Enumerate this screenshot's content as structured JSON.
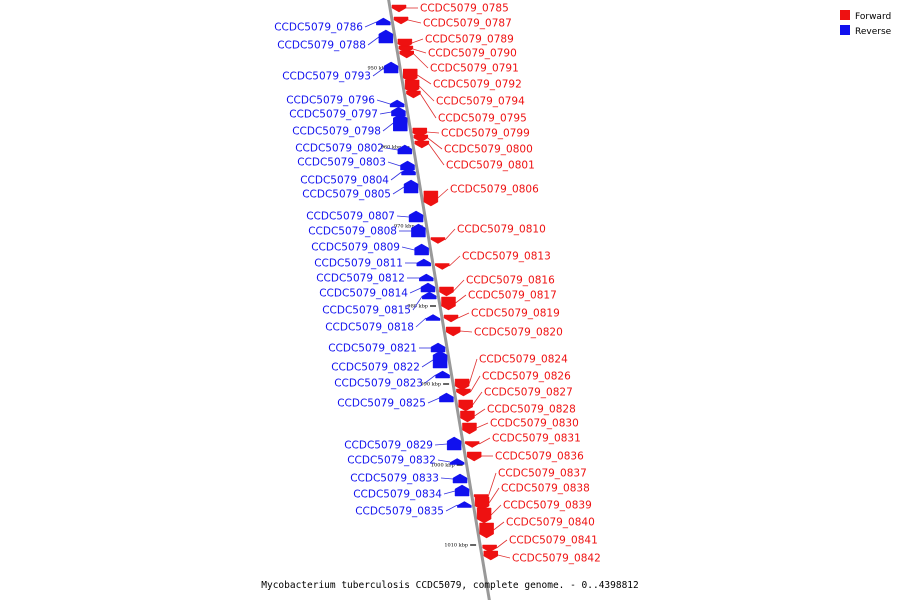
{
  "caption": "Mycobacterium tuberculosis CCDC5079, complete genome. - 0..4398812",
  "colors": {
    "forward": "#ee1111",
    "reverse": "#1111ee",
    "axis": "#999999",
    "leader_forward": "#e03030",
    "leader_reverse": "#3030e0"
  },
  "legend": [
    {
      "key": "forward",
      "label": "Forward"
    },
    {
      "key": "reverse",
      "label": "Reverse"
    }
  ],
  "scale_ticks": [
    "950 kbp",
    "960 kbp",
    "970 kbp",
    "980 kbp",
    "990 kbp",
    "1000 kbp",
    "1010 kbp"
  ],
  "genes": [
    {
      "name": "CCDC5079_0785",
      "strand": "forward"
    },
    {
      "name": "CCDC5079_0786",
      "strand": "reverse"
    },
    {
      "name": "CCDC5079_0787",
      "strand": "forward"
    },
    {
      "name": "CCDC5079_0788",
      "strand": "reverse"
    },
    {
      "name": "CCDC5079_0789",
      "strand": "forward"
    },
    {
      "name": "CCDC5079_0790",
      "strand": "forward"
    },
    {
      "name": "CCDC5079_0791",
      "strand": "forward"
    },
    {
      "name": "CCDC5079_0793",
      "strand": "reverse"
    },
    {
      "name": "CCDC5079_0792",
      "strand": "forward"
    },
    {
      "name": "CCDC5079_0794",
      "strand": "forward"
    },
    {
      "name": "CCDC5079_0796",
      "strand": "reverse"
    },
    {
      "name": "CCDC5079_0797",
      "strand": "reverse"
    },
    {
      "name": "CCDC5079_0795",
      "strand": "forward"
    },
    {
      "name": "CCDC5079_0798",
      "strand": "reverse"
    },
    {
      "name": "CCDC5079_0799",
      "strand": "forward"
    },
    {
      "name": "CCDC5079_0802",
      "strand": "reverse"
    },
    {
      "name": "CCDC5079_0800",
      "strand": "forward"
    },
    {
      "name": "CCDC5079_0803",
      "strand": "reverse"
    },
    {
      "name": "CCDC5079_0801",
      "strand": "forward"
    },
    {
      "name": "CCDC5079_0804",
      "strand": "reverse"
    },
    {
      "name": "CCDC5079_0805",
      "strand": "reverse"
    },
    {
      "name": "CCDC5079_0806",
      "strand": "forward"
    },
    {
      "name": "CCDC5079_0807",
      "strand": "reverse"
    },
    {
      "name": "CCDC5079_0808",
      "strand": "reverse"
    },
    {
      "name": "CCDC5079_0810",
      "strand": "forward"
    },
    {
      "name": "CCDC5079_0809",
      "strand": "reverse"
    },
    {
      "name": "CCDC5079_0813",
      "strand": "forward"
    },
    {
      "name": "CCDC5079_0811",
      "strand": "reverse"
    },
    {
      "name": "CCDC5079_0812",
      "strand": "reverse"
    },
    {
      "name": "CCDC5079_0816",
      "strand": "forward"
    },
    {
      "name": "CCDC5079_0814",
      "strand": "reverse"
    },
    {
      "name": "CCDC5079_0817",
      "strand": "forward"
    },
    {
      "name": "CCDC5079_0815",
      "strand": "reverse"
    },
    {
      "name": "CCDC5079_0819",
      "strand": "forward"
    },
    {
      "name": "CCDC5079_0818",
      "strand": "reverse"
    },
    {
      "name": "CCDC5079_0820",
      "strand": "forward"
    },
    {
      "name": "CCDC5079_0821",
      "strand": "reverse"
    },
    {
      "name": "CCDC5079_0824",
      "strand": "forward"
    },
    {
      "name": "CCDC5079_0822",
      "strand": "reverse"
    },
    {
      "name": "CCDC5079_0826",
      "strand": "forward"
    },
    {
      "name": "CCDC5079_0823",
      "strand": "reverse"
    },
    {
      "name": "CCDC5079_0827",
      "strand": "forward"
    },
    {
      "name": "CCDC5079_0825",
      "strand": "reverse"
    },
    {
      "name": "CCDC5079_0828",
      "strand": "forward"
    },
    {
      "name": "CCDC5079_0830",
      "strand": "forward"
    },
    {
      "name": "CCDC5079_0831",
      "strand": "forward"
    },
    {
      "name": "CCDC5079_0829",
      "strand": "reverse"
    },
    {
      "name": "CCDC5079_0836",
      "strand": "forward"
    },
    {
      "name": "CCDC5079_0832",
      "strand": "reverse"
    },
    {
      "name": "CCDC5079_0837",
      "strand": "forward"
    },
    {
      "name": "CCDC5079_0833",
      "strand": "reverse"
    },
    {
      "name": "CCDC5079_0838",
      "strand": "forward"
    },
    {
      "name": "CCDC5079_0834",
      "strand": "reverse"
    },
    {
      "name": "CCDC5079_0839",
      "strand": "forward"
    },
    {
      "name": "CCDC5079_0835",
      "strand": "reverse"
    },
    {
      "name": "CCDC5079_0840",
      "strand": "forward"
    },
    {
      "name": "CCDC5079_0841",
      "strand": "forward"
    },
    {
      "name": "CCDC5079_0842",
      "strand": "forward"
    }
  ]
}
